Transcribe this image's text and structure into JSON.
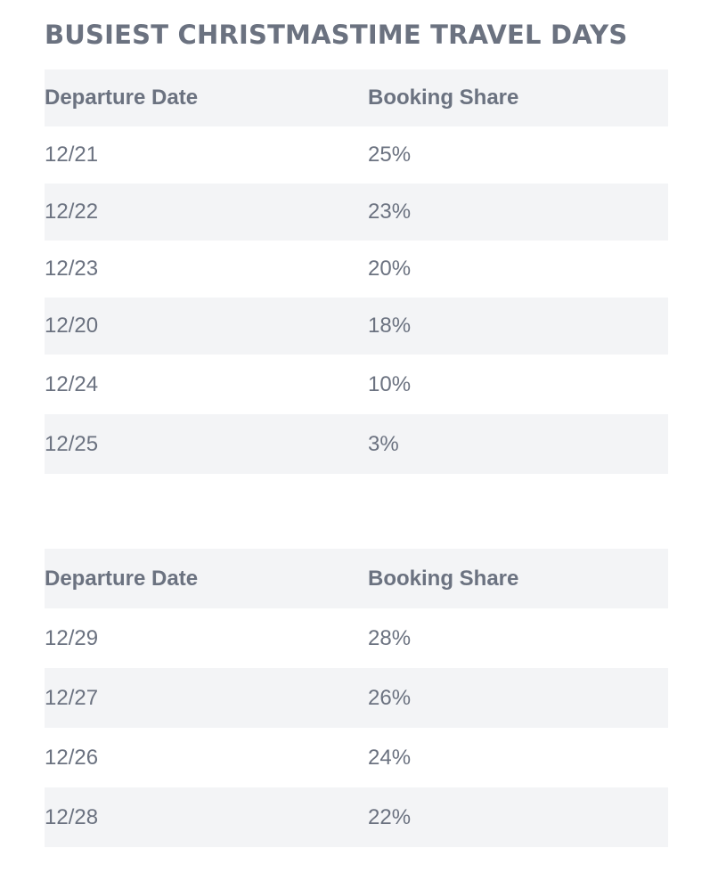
{
  "title": "BUSIEST CHRISTMASTIME TRAVEL DAYS",
  "colors": {
    "text": "#6b7280",
    "row_shade": "#f3f4f6",
    "background": "#ffffff"
  },
  "table1": {
    "headers": [
      "Departure Date",
      "Booking Share"
    ],
    "rows": [
      [
        "12/21",
        "25%"
      ],
      [
        "12/22",
        "23%"
      ],
      [
        "12/23",
        "20%"
      ],
      [
        "12/20",
        "18%"
      ],
      [
        "12/24",
        "10%"
      ],
      [
        "12/25",
        "3%"
      ]
    ]
  },
  "table2": {
    "headers": [
      "Departure Date",
      "Booking Share"
    ],
    "rows": [
      [
        "12/29",
        "28%"
      ],
      [
        "12/27",
        "26%"
      ],
      [
        "12/26",
        "24%"
      ],
      [
        "12/28",
        "22%"
      ]
    ]
  }
}
